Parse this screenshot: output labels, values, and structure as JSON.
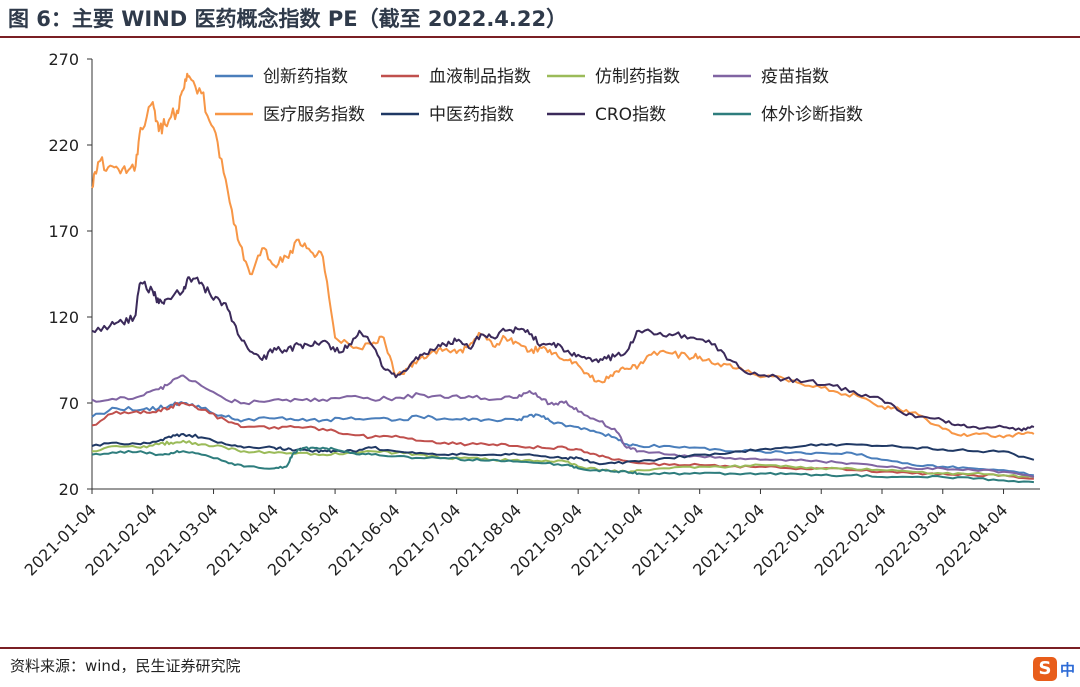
{
  "header": {
    "title": "图 6：主要 WIND 医药概念指数 PE（截至 2022.4.22）"
  },
  "footer": {
    "source": "资料来源：wind，民生证券研究院",
    "logo_letter": "S",
    "logo_text": "中"
  },
  "chart_data": {
    "type": "line",
    "title": "主要 WIND 医药概念指数 PE（截至 2022.4.22）",
    "xlabel": "",
    "ylabel": "",
    "ylim": [
      20,
      270
    ],
    "yticks": [
      20,
      70,
      120,
      170,
      220,
      270
    ],
    "xticks": [
      "2021-01-04",
      "2021-02-04",
      "2021-03-04",
      "2021-04-04",
      "2021-05-04",
      "2021-06-04",
      "2021-07-04",
      "2021-08-04",
      "2021-09-04",
      "2021-10-04",
      "2021-11-04",
      "2021-12-04",
      "2022-01-04",
      "2022-02-04",
      "2022-03-04",
      "2022-04-04"
    ],
    "x_domain": [
      0,
      15.6
    ],
    "series": [
      {
        "name": "创新药指数",
        "color": "#4a7ebb",
        "x": [
          0,
          0.4,
          0.8,
          1.1,
          1.3,
          1.5,
          1.8,
          2.2,
          2.5,
          3,
          3.4,
          3.8,
          4.2,
          4.6,
          5,
          5.4,
          5.8,
          6.2,
          6.6,
          7,
          7.2,
          7.4,
          7.6,
          8,
          8.3,
          8.6,
          8.8,
          9,
          9.5,
          10,
          10.5,
          11,
          11.5,
          12,
          12.5,
          13,
          13.5,
          14,
          14.5,
          15,
          15.5
        ],
        "values": [
          62,
          67,
          66,
          67,
          69,
          70,
          67,
          62,
          60,
          61,
          60,
          60,
          61,
          61,
          60,
          62,
          61,
          60,
          60,
          60,
          63,
          62,
          58,
          56,
          53,
          50,
          46,
          45,
          45,
          44,
          42,
          42,
          41,
          41,
          41,
          37,
          34,
          33,
          32,
          31,
          28
        ]
      },
      {
        "name": "血液制品指数",
        "color": "#c0504d",
        "x": [
          0,
          0.4,
          0.8,
          1.1,
          1.3,
          1.5,
          1.8,
          2.2,
          2.5,
          3,
          3.4,
          3.8,
          4.2,
          4.6,
          5,
          5.4,
          5.8,
          6.2,
          6.6,
          7,
          7.4,
          7.8,
          8,
          8.3,
          8.6,
          9,
          9.5,
          10,
          10.5,
          11,
          11.5,
          12,
          12.5,
          13,
          13.5,
          14,
          14.5,
          15,
          15.5
        ],
        "values": [
          57,
          65,
          64,
          66,
          68,
          70,
          66,
          60,
          56,
          56,
          56,
          55,
          52,
          50,
          51,
          48,
          47,
          46,
          46,
          45,
          44,
          44,
          43,
          40,
          37,
          35,
          34,
          34,
          33,
          33,
          32,
          32,
          31,
          30,
          29,
          29,
          28,
          28,
          26
        ]
      },
      {
        "name": "仿制药指数",
        "color": "#9bbb59",
        "x": [
          0,
          0.4,
          0.8,
          1.1,
          1.3,
          1.5,
          1.8,
          2.2,
          2.5,
          3,
          3.4,
          3.8,
          4.2,
          4.6,
          5,
          5.4,
          5.8,
          6.2,
          6.6,
          7,
          7.4,
          7.8,
          8,
          8.4,
          8.8,
          9,
          9.5,
          10,
          10.5,
          11,
          11.5,
          12,
          12.5,
          13,
          13.5,
          14,
          14.5,
          15,
          15.5
        ],
        "values": [
          42,
          45,
          44,
          46,
          47,
          48,
          46,
          44,
          42,
          41,
          41,
          40,
          41,
          42,
          41,
          40,
          38,
          38,
          37,
          37,
          36,
          36,
          33,
          31,
          30,
          31,
          32,
          33,
          33,
          34,
          33,
          32,
          32,
          31,
          30,
          29,
          29,
          28,
          27
        ]
      },
      {
        "name": "疫苗指数",
        "color": "#8064a2",
        "x": [
          0,
          0.4,
          0.8,
          1.1,
          1.3,
          1.5,
          1.8,
          2.2,
          2.5,
          3,
          3.4,
          3.8,
          4.2,
          4.6,
          5,
          5.4,
          5.8,
          6.2,
          6.6,
          7,
          7.2,
          7.4,
          7.6,
          7.8,
          8,
          8.3,
          8.6,
          8.8,
          9,
          9.5,
          10,
          10.5,
          11,
          11.5,
          12,
          12.5,
          13,
          13.5,
          14,
          14.5,
          15,
          15.5
        ],
        "values": [
          72,
          72,
          74,
          78,
          82,
          86,
          80,
          72,
          70,
          72,
          72,
          72,
          74,
          72,
          73,
          75,
          73,
          74,
          72,
          73,
          77,
          72,
          69,
          71,
          65,
          60,
          55,
          44,
          42,
          40,
          39,
          38,
          37,
          37,
          36,
          35,
          33,
          32,
          32,
          31,
          30,
          27
        ]
      },
      {
        "name": "医疗服务指数",
        "color": "#f79646",
        "x": [
          0,
          0.1,
          0.3,
          0.5,
          0.7,
          0.8,
          1,
          1.1,
          1.2,
          1.4,
          1.5,
          1.6,
          1.8,
          2,
          2.2,
          2.4,
          2.6,
          2.8,
          3,
          3.2,
          3.4,
          3.6,
          3.8,
          4,
          4.3,
          4.6,
          4.8,
          5,
          5.2,
          5.4,
          5.6,
          5.8,
          6,
          6.2,
          6.4,
          6.6,
          6.8,
          7,
          7.2,
          7.4,
          7.6,
          7.8,
          8,
          8.2,
          8.4,
          8.6,
          8.8,
          9,
          9.2,
          9.5,
          9.8,
          10,
          10.3,
          10.6,
          11,
          11.4,
          11.8,
          12.2,
          12.6,
          13,
          13.3,
          13.6,
          14,
          14.3,
          14.6,
          15,
          15.3,
          15.5
        ],
        "values": [
          195,
          210,
          208,
          206,
          205,
          230,
          245,
          228,
          232,
          240,
          252,
          260,
          250,
          230,
          200,
          165,
          145,
          160,
          150,
          155,
          165,
          158,
          155,
          108,
          102,
          104,
          108,
          85,
          90,
          96,
          100,
          101,
          99,
          103,
          110,
          103,
          108,
          105,
          100,
          102,
          99,
          95,
          92,
          85,
          82,
          88,
          90,
          92,
          98,
          99,
          97,
          97,
          93,
          90,
          85,
          84,
          80,
          77,
          74,
          68,
          66,
          63,
          55,
          51,
          52,
          50,
          52,
          52
        ]
      },
      {
        "name": "中医药指数",
        "color": "#1f3864",
        "x": [
          0,
          0.4,
          0.8,
          1.1,
          1.3,
          1.5,
          1.8,
          2.2,
          2.5,
          3,
          3.2,
          3.4,
          3.6,
          3.8,
          4,
          4.3,
          4.6,
          5,
          5.4,
          5.8,
          6.2,
          6.6,
          7,
          7.4,
          7.8,
          8,
          8.3,
          8.6,
          9,
          9.5,
          10,
          10.5,
          11,
          11.5,
          12,
          12.5,
          13,
          13.5,
          14,
          14.5,
          15,
          15.5
        ],
        "values": [
          45,
          47,
          46,
          48,
          50,
          52,
          50,
          46,
          44,
          44,
          43,
          43,
          42,
          42,
          42,
          42,
          44,
          42,
          41,
          40,
          40,
          40,
          40,
          39,
          38,
          38,
          35,
          35,
          36,
          38,
          40,
          41,
          43,
          44,
          46,
          46,
          45,
          44,
          43,
          42,
          42,
          37
        ]
      },
      {
        "name": "CRO指数",
        "color": "#3b2a5a",
        "x": [
          0,
          0.3,
          0.5,
          0.7,
          0.8,
          1,
          1.1,
          1.2,
          1.5,
          1.6,
          1.8,
          2,
          2.2,
          2.4,
          2.6,
          2.8,
          3,
          3.2,
          3.4,
          3.6,
          3.8,
          4,
          4.2,
          4.4,
          4.6,
          4.8,
          5,
          5.2,
          5.4,
          5.6,
          5.8,
          6,
          6.2,
          6.4,
          6.6,
          6.8,
          7,
          7.2,
          7.4,
          7.6,
          7.8,
          8,
          8.2,
          8.4,
          8.6,
          8.8,
          9,
          9.3,
          9.6,
          9.9,
          10.2,
          10.5,
          10.8,
          11,
          11.4,
          11.8,
          12.2,
          12.6,
          13,
          13.3,
          13.6,
          14,
          14.3,
          14.6,
          15,
          15.3,
          15.5
        ],
        "values": [
          112,
          115,
          117,
          120,
          140,
          135,
          128,
          130,
          135,
          143,
          140,
          130,
          128,
          110,
          100,
          95,
          102,
          100,
          104,
          103,
          106,
          100,
          102,
          112,
          104,
          90,
          85,
          90,
          98,
          101,
          104,
          106,
          102,
          110,
          108,
          112,
          113,
          110,
          104,
          105,
          100,
          98,
          96,
          95,
          97,
          100,
          112,
          110,
          110,
          108,
          104,
          95,
          87,
          86,
          84,
          83,
          80,
          75,
          72,
          65,
          62,
          60,
          57,
          55,
          56,
          54,
          56
        ]
      },
      {
        "name": "体外诊断指数",
        "color": "#2e7d7d",
        "x": [
          0,
          0.4,
          0.8,
          1.1,
          1.3,
          1.5,
          1.8,
          2.2,
          2.5,
          3,
          3.2,
          3.3,
          3.4,
          3.6,
          3.8,
          4,
          4.3,
          4.6,
          5,
          5.4,
          5.8,
          6.2,
          6.6,
          7,
          7.4,
          7.8,
          8,
          8.3,
          8.6,
          8.8,
          9,
          9.5,
          10,
          10.5,
          11,
          11.5,
          12,
          12.5,
          13,
          13.5,
          14,
          14.5,
          15,
          15.5
        ],
        "values": [
          40,
          41,
          42,
          40,
          41,
          42,
          40,
          36,
          33,
          32,
          33,
          40,
          43,
          44,
          44,
          43,
          41,
          40,
          39,
          38,
          38,
          37,
          37,
          36,
          35,
          34,
          32,
          31,
          30,
          30,
          29,
          29,
          29,
          29,
          29,
          29,
          28,
          28,
          27,
          27,
          27,
          26,
          25,
          24
        ]
      }
    ]
  }
}
